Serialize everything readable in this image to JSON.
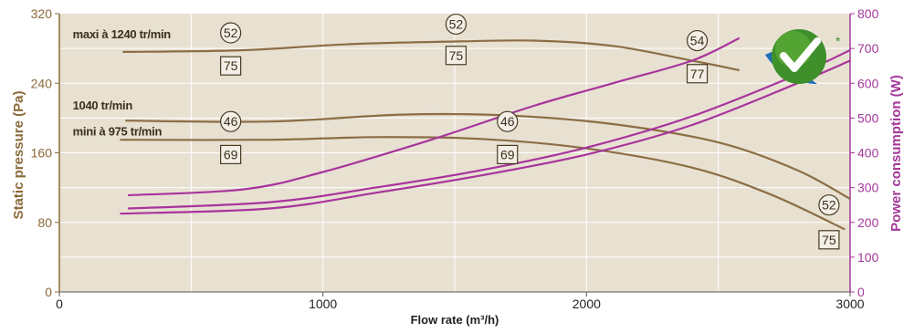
{
  "chart_data": {
    "type": "line",
    "xlabel": "Flow rate (m³/h)",
    "ylabel_left": "Static pressure (Pa)",
    "ylabel_right": "Power consumption (W)",
    "xlim": [
      0,
      3000
    ],
    "ylim_left": [
      0,
      320
    ],
    "ylim_right": [
      0,
      800
    ],
    "x_ticks": [
      "0",
      "1000",
      "2000",
      "3000"
    ],
    "y_left_ticks": [
      "0",
      "80",
      "160",
      "240",
      "320"
    ],
    "y_right_ticks": [
      "0",
      "100",
      "200",
      "300",
      "400",
      "500",
      "600",
      "700",
      "800"
    ],
    "x_tick_values": [
      0,
      1000,
      2000,
      3000
    ],
    "y_left_tick_values": [
      0,
      80,
      160,
      240,
      320
    ],
    "y_right_tick_values": [
      0,
      100,
      200,
      300,
      400,
      500,
      600,
      700,
      800
    ],
    "grid": true,
    "colors": {
      "background": "#e8e1d2",
      "grid": "#ffffff",
      "pressure": "#8b6e45",
      "power": "#a8349c",
      "axis_left": "#8b6a3a",
      "axis_right": "#a4399a"
    },
    "pressure_series": [
      {
        "axis": "left",
        "x": [
          240,
          700,
          1100,
          1500,
          1800,
          2100,
          2400,
          2580
        ],
        "y": [
          276,
          278,
          285,
          288,
          289,
          283,
          266,
          255
        ]
      },
      {
        "axis": "left",
        "x": [
          250,
          800,
          1300,
          1700,
          2100,
          2500,
          2800,
          3000
        ],
        "y": [
          197,
          196,
          204,
          203,
          193,
          172,
          140,
          107
        ]
      },
      {
        "axis": "left",
        "x": [
          230,
          800,
          1200,
          1600,
          2000,
          2400,
          2700,
          2980
        ],
        "y": [
          175,
          175,
          178,
          176,
          165,
          143,
          112,
          72
        ]
      }
    ],
    "power_series": [
      {
        "axis": "right",
        "x": [
          260,
          700,
          1000,
          1400,
          1800,
          2100,
          2400,
          2580
        ],
        "y": [
          278,
          295,
          345,
          435,
          535,
          600,
          665,
          730
        ]
      },
      {
        "axis": "right",
        "x": [
          260,
          800,
          1200,
          1600,
          2000,
          2400,
          2800,
          3000
        ],
        "y": [
          240,
          258,
          300,
          350,
          415,
          505,
          625,
          695
        ]
      },
      {
        "axis": "right",
        "x": [
          230,
          800,
          1200,
          1600,
          2000,
          2400,
          2800,
          3000
        ],
        "y": [
          225,
          240,
          285,
          335,
          395,
          480,
          600,
          665
        ]
      }
    ],
    "curve_labels": [
      {
        "text": "maxi à 1240 tr/min",
        "x": 120,
        "y": 297
      },
      {
        "text": "1040 tr/min",
        "x": 120,
        "y": 215
      },
      {
        "text": "mini à 975 tr/min",
        "x": 120,
        "y": 185
      }
    ],
    "annotations": [
      {
        "type": "circle",
        "text": "52",
        "x": 650,
        "y": 298
      },
      {
        "type": "square",
        "text": "75",
        "x": 650,
        "y": 260
      },
      {
        "type": "circle",
        "text": "52",
        "x": 1505,
        "y": 308
      },
      {
        "type": "square",
        "text": "75",
        "x": 1505,
        "y": 272
      },
      {
        "type": "circle",
        "text": "54",
        "x": 2420,
        "y": 289
      },
      {
        "type": "square",
        "text": "77",
        "x": 2420,
        "y": 251
      },
      {
        "type": "circle",
        "text": "46",
        "x": 650,
        "y": 196
      },
      {
        "type": "square",
        "text": "69",
        "x": 650,
        "y": 158
      },
      {
        "type": "circle",
        "text": "46",
        "x": 1700,
        "y": 196
      },
      {
        "type": "square",
        "text": "69",
        "x": 1700,
        "y": 158
      },
      {
        "type": "circle",
        "text": "52",
        "x": 2920,
        "y": 100
      },
      {
        "type": "square",
        "text": "75",
        "x": 2920,
        "y": 60
      }
    ]
  },
  "badge": {
    "icon": "checkmark-certification-icon",
    "mark": "*"
  }
}
